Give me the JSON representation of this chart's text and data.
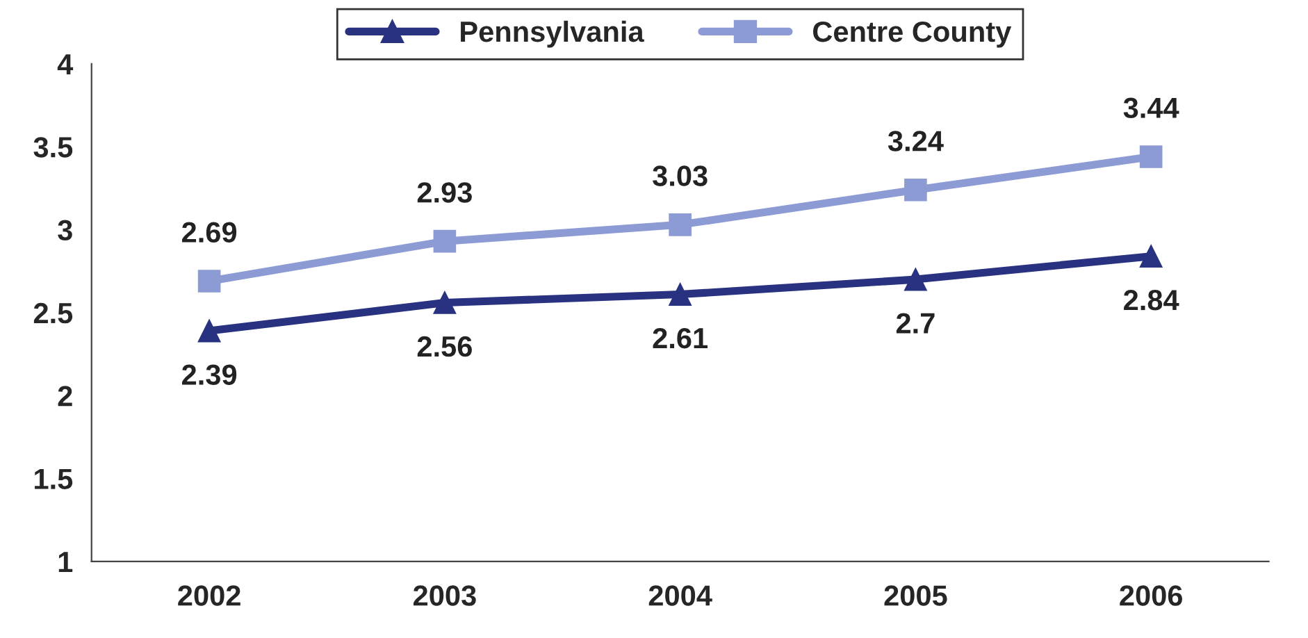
{
  "chart_data": {
    "type": "line",
    "categories": [
      "2002",
      "2003",
      "2004",
      "2005",
      "2006"
    ],
    "series": [
      {
        "name": "Pennsylvania",
        "color": "#283280",
        "marker": "triangle",
        "values": [
          2.39,
          2.56,
          2.61,
          2.7,
          2.84
        ]
      },
      {
        "name": "Centre County",
        "color": "#8c9bd4",
        "marker": "square",
        "values": [
          2.69,
          2.93,
          3.03,
          3.24,
          3.44
        ]
      }
    ],
    "ylim": [
      1,
      4
    ],
    "yticks": [
      1,
      1.5,
      2,
      2.5,
      3,
      3.5,
      4
    ],
    "grid": false,
    "legend": "top",
    "data_labels": true,
    "line_style": "solid"
  }
}
